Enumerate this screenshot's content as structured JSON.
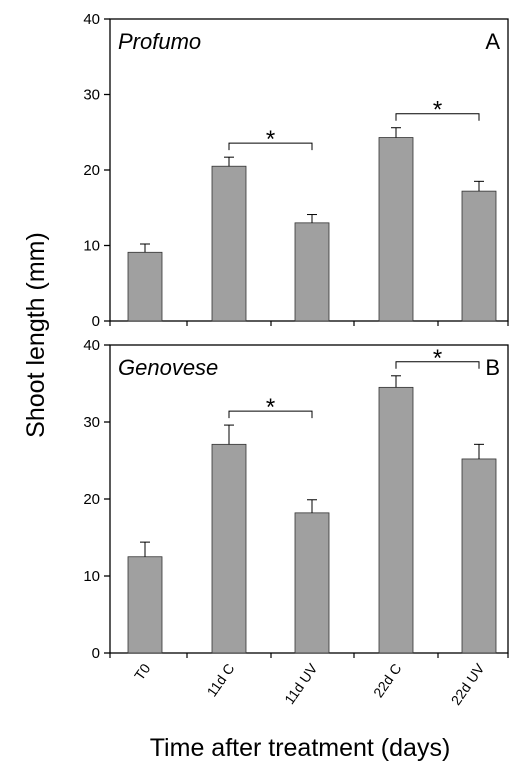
{
  "figure": {
    "ylabel": "Shoot length (mm)",
    "xlabel": "Time after treatment (days)"
  },
  "chart_data": [
    {
      "type": "bar",
      "title": "Profumo",
      "panel_label": "A",
      "categories": [
        "T0",
        "11d C",
        "11d UV",
        "22d C",
        "22d UV"
      ],
      "values": [
        9.1,
        20.5,
        13.0,
        24.3,
        17.2
      ],
      "errors": [
        1.1,
        1.2,
        1.1,
        1.3,
        1.3
      ],
      "ylim": [
        0,
        40
      ],
      "yticks": [
        0,
        10,
        20,
        30,
        40
      ],
      "significance": [
        {
          "from": 1,
          "to": 2,
          "label": "*"
        },
        {
          "from": 3,
          "to": 4,
          "label": "*"
        }
      ],
      "bar_color": "#a0a0a0"
    },
    {
      "type": "bar",
      "title": "Genovese",
      "panel_label": "B",
      "categories": [
        "T0",
        "11d C",
        "11d UV",
        "22d C",
        "22d UV"
      ],
      "values": [
        12.5,
        27.1,
        18.2,
        34.5,
        25.2
      ],
      "errors": [
        1.9,
        2.5,
        1.7,
        1.5,
        1.9
      ],
      "ylim": [
        0,
        40
      ],
      "yticks": [
        0,
        10,
        20,
        30,
        40
      ],
      "significance": [
        {
          "from": 1,
          "to": 2,
          "label": "*"
        },
        {
          "from": 3,
          "to": 4,
          "label": "*"
        }
      ],
      "bar_color": "#a0a0a0"
    }
  ]
}
